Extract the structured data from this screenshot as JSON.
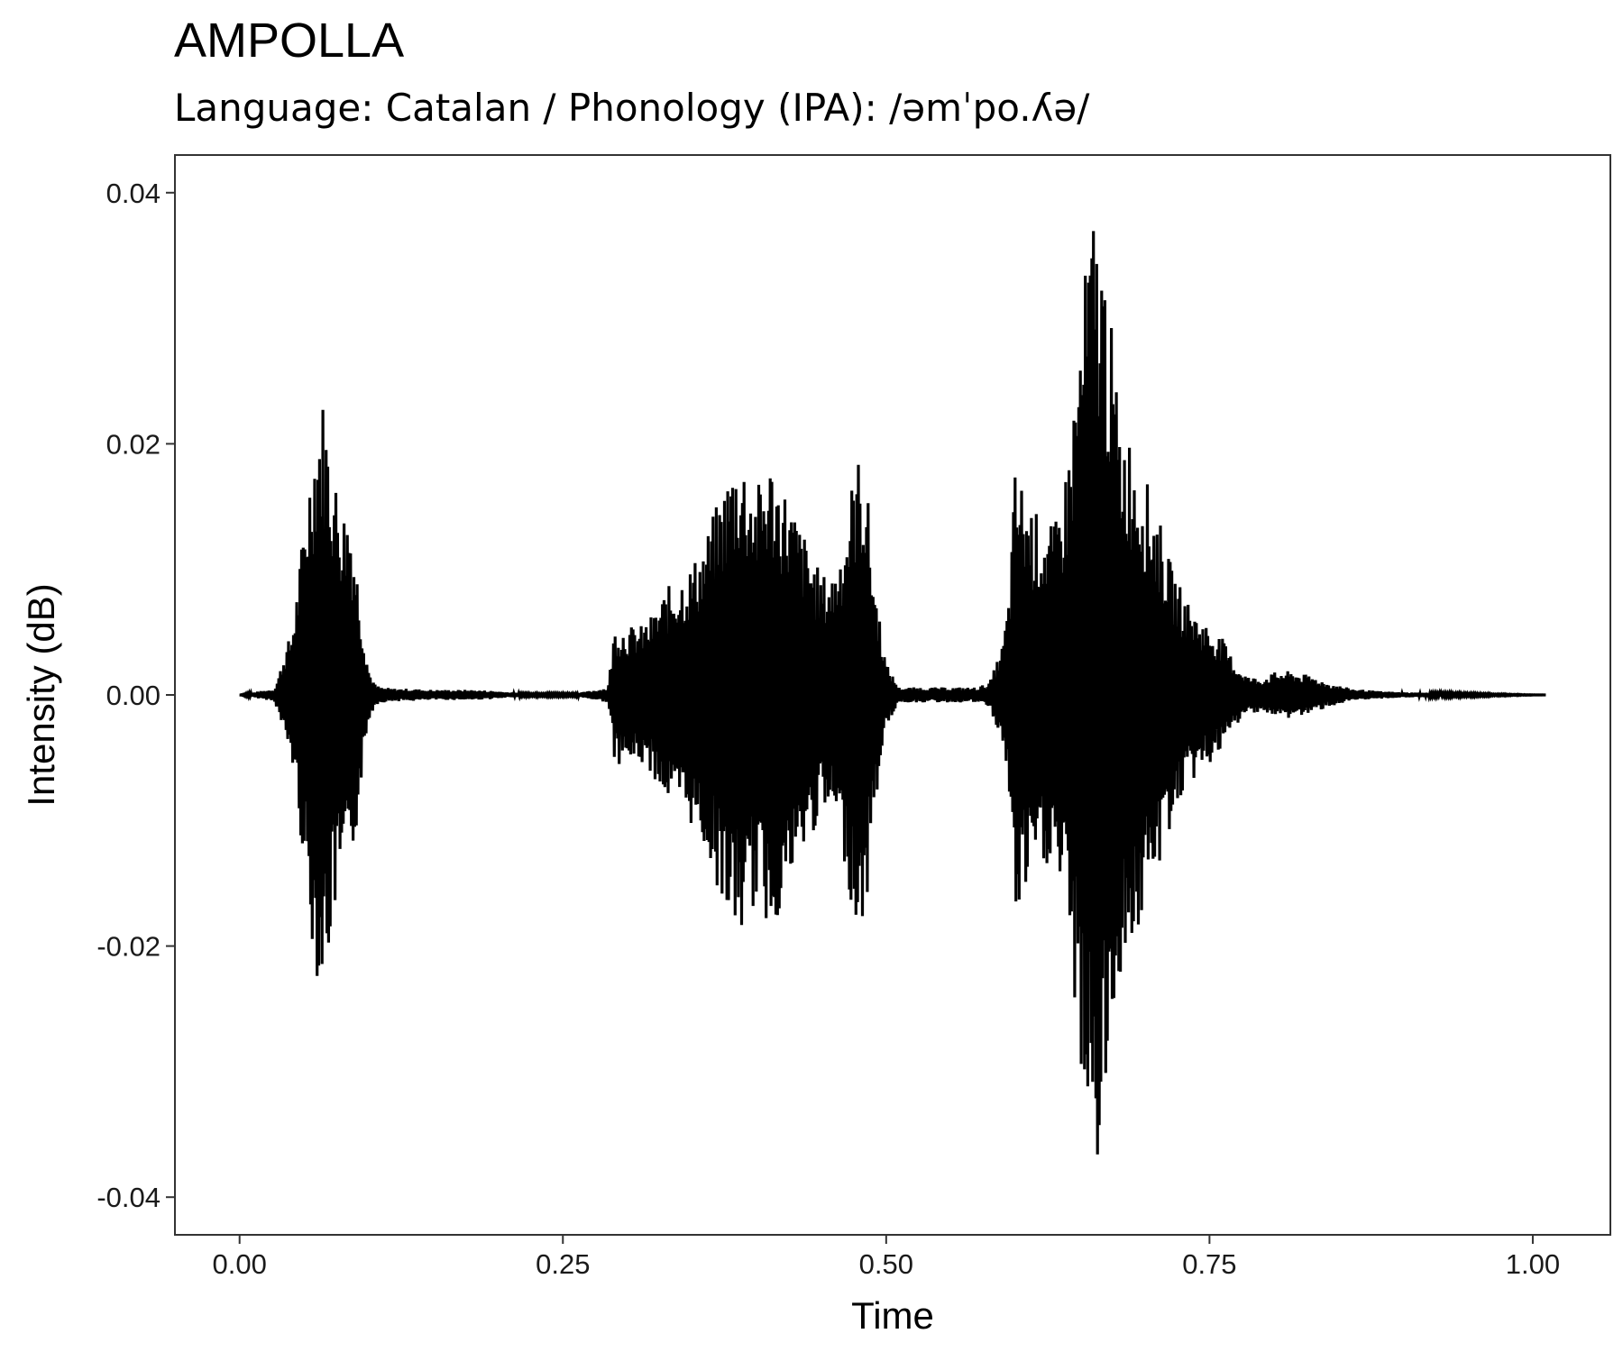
{
  "chart_data": {
    "type": "line",
    "title": "AMPOLLA",
    "subtitle": "Language: Catalan / Phonology (IPA): /əmˈpo.ʎə/",
    "xlabel": "Time",
    "ylabel": "Intensity (dB)",
    "xlim": [
      -0.05,
      1.06
    ],
    "ylim": [
      -0.043,
      0.043
    ],
    "x_ticks": [
      0.0,
      0.25,
      0.5,
      0.75,
      1.0
    ],
    "x_tick_labels": [
      "0.00",
      "0.25",
      "0.50",
      "0.75",
      "1.00"
    ],
    "y_ticks": [
      -0.04,
      -0.02,
      0.0,
      0.02,
      0.04
    ],
    "y_tick_labels": [
      "-0.04",
      "-0.02",
      "0.00",
      "0.02",
      "0.04"
    ],
    "grid": false,
    "legend": "none",
    "line_color": "#000000",
    "series": [
      {
        "x": [
          0.0,
          0.027,
          0.03,
          0.035,
          0.04,
          0.045,
          0.05,
          0.055,
          0.06,
          0.065,
          0.07,
          0.075,
          0.08,
          0.085,
          0.09,
          0.095,
          0.1,
          0.105,
          0.11,
          0.12,
          0.13,
          0.15,
          0.18,
          0.2,
          0.22,
          0.26,
          0.285,
          0.29,
          0.3,
          0.31,
          0.32,
          0.33,
          0.34,
          0.35,
          0.36,
          0.37,
          0.38,
          0.385,
          0.39,
          0.4,
          0.405,
          0.41,
          0.42,
          0.43,
          0.44,
          0.45,
          0.46,
          0.47,
          0.475,
          0.48,
          0.485,
          0.49,
          0.5,
          0.51,
          0.52,
          0.55,
          0.57,
          0.58,
          0.59,
          0.595,
          0.6,
          0.61,
          0.62,
          0.63,
          0.64,
          0.65,
          0.655,
          0.66,
          0.665,
          0.67,
          0.675,
          0.68,
          0.69,
          0.7,
          0.71,
          0.72,
          0.73,
          0.74,
          0.75,
          0.76,
          0.77,
          0.78,
          0.79,
          0.8,
          0.81,
          0.82,
          0.83,
          0.84,
          0.86,
          0.88,
          0.9,
          0.95,
          1.01
        ],
        "values": [
          0.0,
          0.0005,
          0.0015,
          0.0035,
          0.005,
          0.009,
          0.014,
          0.019,
          0.0225,
          0.024,
          0.02,
          0.017,
          0.015,
          0.0155,
          0.011,
          0.006,
          0.002,
          0.0008,
          0.0006,
          0.0005,
          0.0005,
          0.0004,
          0.0004,
          0.0003,
          0.0001,
          0.0001,
          0.0006,
          0.0055,
          0.0055,
          0.0055,
          0.0065,
          0.0085,
          0.0095,
          0.0105,
          0.0125,
          0.0155,
          0.0185,
          0.0195,
          0.019,
          0.0165,
          0.018,
          0.019,
          0.017,
          0.0145,
          0.012,
          0.0095,
          0.01,
          0.0145,
          0.018,
          0.0195,
          0.017,
          0.01,
          0.0025,
          0.0006,
          0.0006,
          0.0006,
          0.0006,
          0.001,
          0.004,
          0.008,
          0.0185,
          0.0155,
          0.014,
          0.0135,
          0.0185,
          0.0295,
          0.035,
          0.039,
          0.0375,
          0.034,
          0.0285,
          0.0225,
          0.0205,
          0.0175,
          0.0145,
          0.0105,
          0.008,
          0.0065,
          0.0055,
          0.0045,
          0.0025,
          0.0015,
          0.0013,
          0.0018,
          0.0019,
          0.0017,
          0.0015,
          0.001,
          0.0005,
          0.0003,
          0.0002,
          0.0001,
          0.0
        ]
      }
    ]
  }
}
